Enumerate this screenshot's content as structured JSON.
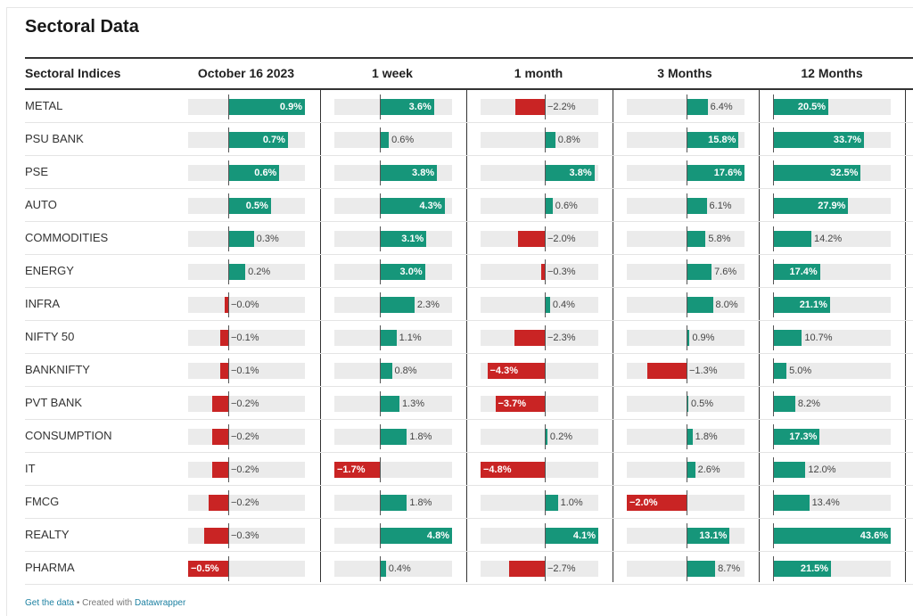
{
  "title": "Sectoral Data",
  "footer": {
    "get_data": "Get the data",
    "separator": " • Created with ",
    "tool": "Datawrapper"
  },
  "colors": {
    "positive": "#16967a",
    "negative": "#c92424",
    "track": "#ebebeb"
  },
  "chart_data": {
    "type": "table",
    "columns": [
      "Sectoral Indices",
      "October 16 2023",
      "1 week",
      "1 month",
      "3 Months",
      "12 Months"
    ],
    "rows": [
      {
        "name": "METAL",
        "values": [
          0.9,
          3.6,
          -2.2,
          6.4,
          20.5
        ],
        "labels": [
          "0.9%",
          "3.6%",
          "−2.2%",
          "6.4%",
          "20.5%"
        ]
      },
      {
        "name": "PSU BANK",
        "values": [
          0.7,
          0.6,
          0.8,
          15.8,
          33.7
        ],
        "labels": [
          "0.7%",
          "0.6%",
          "0.8%",
          "15.8%",
          "33.7%"
        ]
      },
      {
        "name": "PSE",
        "values": [
          0.6,
          3.8,
          3.8,
          17.6,
          32.5
        ],
        "labels": [
          "0.6%",
          "3.8%",
          "3.8%",
          "17.6%",
          "32.5%"
        ]
      },
      {
        "name": "AUTO",
        "values": [
          0.5,
          4.3,
          0.6,
          6.1,
          27.9
        ],
        "labels": [
          "0.5%",
          "4.3%",
          "0.6%",
          "6.1%",
          "27.9%"
        ]
      },
      {
        "name": "COMMODITIES",
        "values": [
          0.3,
          3.1,
          -2.0,
          5.8,
          14.2
        ],
        "labels": [
          "0.3%",
          "3.1%",
          "−2.0%",
          "5.8%",
          "14.2%"
        ]
      },
      {
        "name": "ENERGY",
        "values": [
          0.2,
          3.0,
          -0.3,
          7.6,
          17.4
        ],
        "labels": [
          "0.2%",
          "3.0%",
          "−0.3%",
          "7.6%",
          "17.4%"
        ]
      },
      {
        "name": "INFRA",
        "values": [
          -0.04,
          2.3,
          0.4,
          8.0,
          21.1
        ],
        "labels": [
          "−0.0%",
          "2.3%",
          "0.4%",
          "8.0%",
          "21.1%"
        ]
      },
      {
        "name": "NIFTY 50",
        "values": [
          -0.1,
          1.1,
          -2.3,
          0.9,
          10.7
        ],
        "labels": [
          "−0.1%",
          "1.1%",
          "−2.3%",
          "0.9%",
          "10.7%"
        ]
      },
      {
        "name": "BANKNIFTY",
        "values": [
          -0.1,
          0.8,
          -4.3,
          -1.3,
          5.0
        ],
        "labels": [
          "−0.1%",
          "0.8%",
          "−4.3%",
          "−1.3%",
          "5.0%"
        ]
      },
      {
        "name": "PVT BANK",
        "values": [
          -0.2,
          1.3,
          -3.7,
          0.5,
          8.2
        ],
        "labels": [
          "−0.2%",
          "1.3%",
          "−3.7%",
          "0.5%",
          "8.2%"
        ]
      },
      {
        "name": "CONSUMPTION",
        "values": [
          -0.2,
          1.8,
          0.2,
          1.8,
          17.3
        ],
        "labels": [
          "−0.2%",
          "1.8%",
          "0.2%",
          "1.8%",
          "17.3%"
        ]
      },
      {
        "name": "IT",
        "values": [
          -0.2,
          -1.7,
          -4.8,
          2.6,
          12.0
        ],
        "labels": [
          "−0.2%",
          "−1.7%",
          "−4.8%",
          "2.6%",
          "12.0%"
        ]
      },
      {
        "name": "FMCG",
        "values": [
          -0.25,
          1.8,
          1.0,
          -2.0,
          13.4
        ],
        "labels": [
          "−0.2%",
          "1.8%",
          "1.0%",
          "−2.0%",
          "13.4%"
        ]
      },
      {
        "name": "REALTY",
        "values": [
          -0.3,
          4.8,
          4.1,
          13.1,
          43.6
        ],
        "labels": [
          "−0.3%",
          "4.8%",
          "4.1%",
          "13.1%",
          "43.6%"
        ]
      },
      {
        "name": "PHARMA",
        "values": [
          -0.5,
          0.4,
          -2.7,
          8.7,
          21.5
        ],
        "labels": [
          "−0.5%",
          "0.4%",
          "−2.7%",
          "8.7%",
          "21.5%"
        ]
      }
    ],
    "column_ranges": [
      [
        -0.5,
        0.9
      ],
      [
        -1.7,
        4.8
      ],
      [
        -4.8,
        4.1
      ],
      [
        -2.0,
        17.6
      ],
      [
        0,
        43.6
      ]
    ]
  }
}
